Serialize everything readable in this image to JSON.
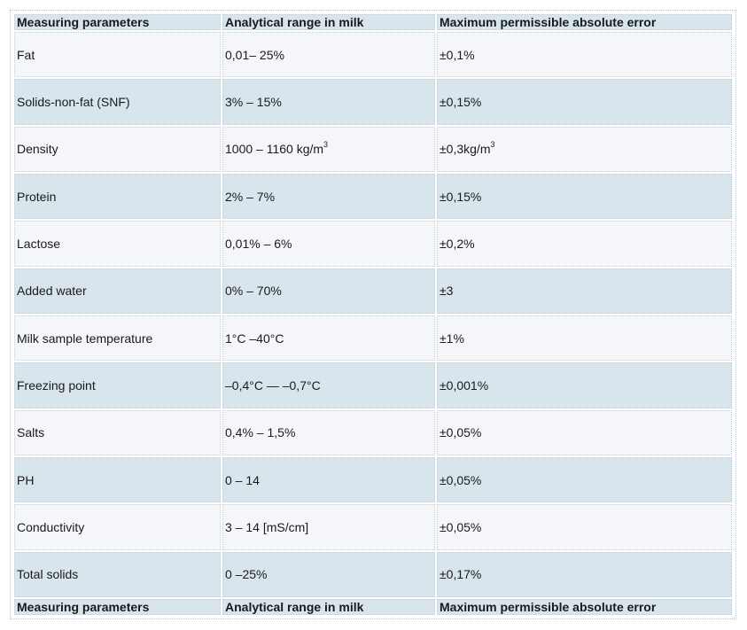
{
  "table": {
    "header": [
      "Measuring parameters",
      "Analytical range in milk",
      "Maximum permissible absolute error"
    ],
    "rows": [
      {
        "param": "Fat",
        "range": "0,01– 25%",
        "error": "±0,1%"
      },
      {
        "param": "Solids-non-fat (SNF)",
        "range": "3% – 15%",
        "error": "±0,15%"
      },
      {
        "param": "Density",
        "range": "1000 – 1160 kg/m",
        "range_sup": "3",
        "error": "±0,3kg/m",
        "error_sup": "3"
      },
      {
        "param": "Protein",
        "range": "2% – 7%",
        "error": "±0,15%"
      },
      {
        "param": "Lactose",
        "range": "0,01% – 6%",
        "error": "±0,2%"
      },
      {
        "param": "Added water",
        "range": "0% – 70%",
        "error": "±3"
      },
      {
        "param": "Milk sample temperature",
        "range": "1°C –40°C",
        "error": "±1%"
      },
      {
        "param": "Freezing point",
        "range": "–0,4°C — –0,7°C",
        "error": "±0,001%"
      },
      {
        "param": "Salts",
        "range": "0,4% – 1,5%",
        "error": "±0,05%"
      },
      {
        "param": "PH",
        "range": "0 – 14",
        "error": "±0,05%"
      },
      {
        "param": "Conductivity",
        "range": "3 – 14 [mS/cm]",
        "error": "±0,05%"
      },
      {
        "param": "Total solids",
        "range": "0 –25%",
        "error": "±0,17%"
      }
    ],
    "footer": [
      "Measuring parameters",
      "Analytical range in milk",
      "Maximum permissible absolute error"
    ]
  }
}
